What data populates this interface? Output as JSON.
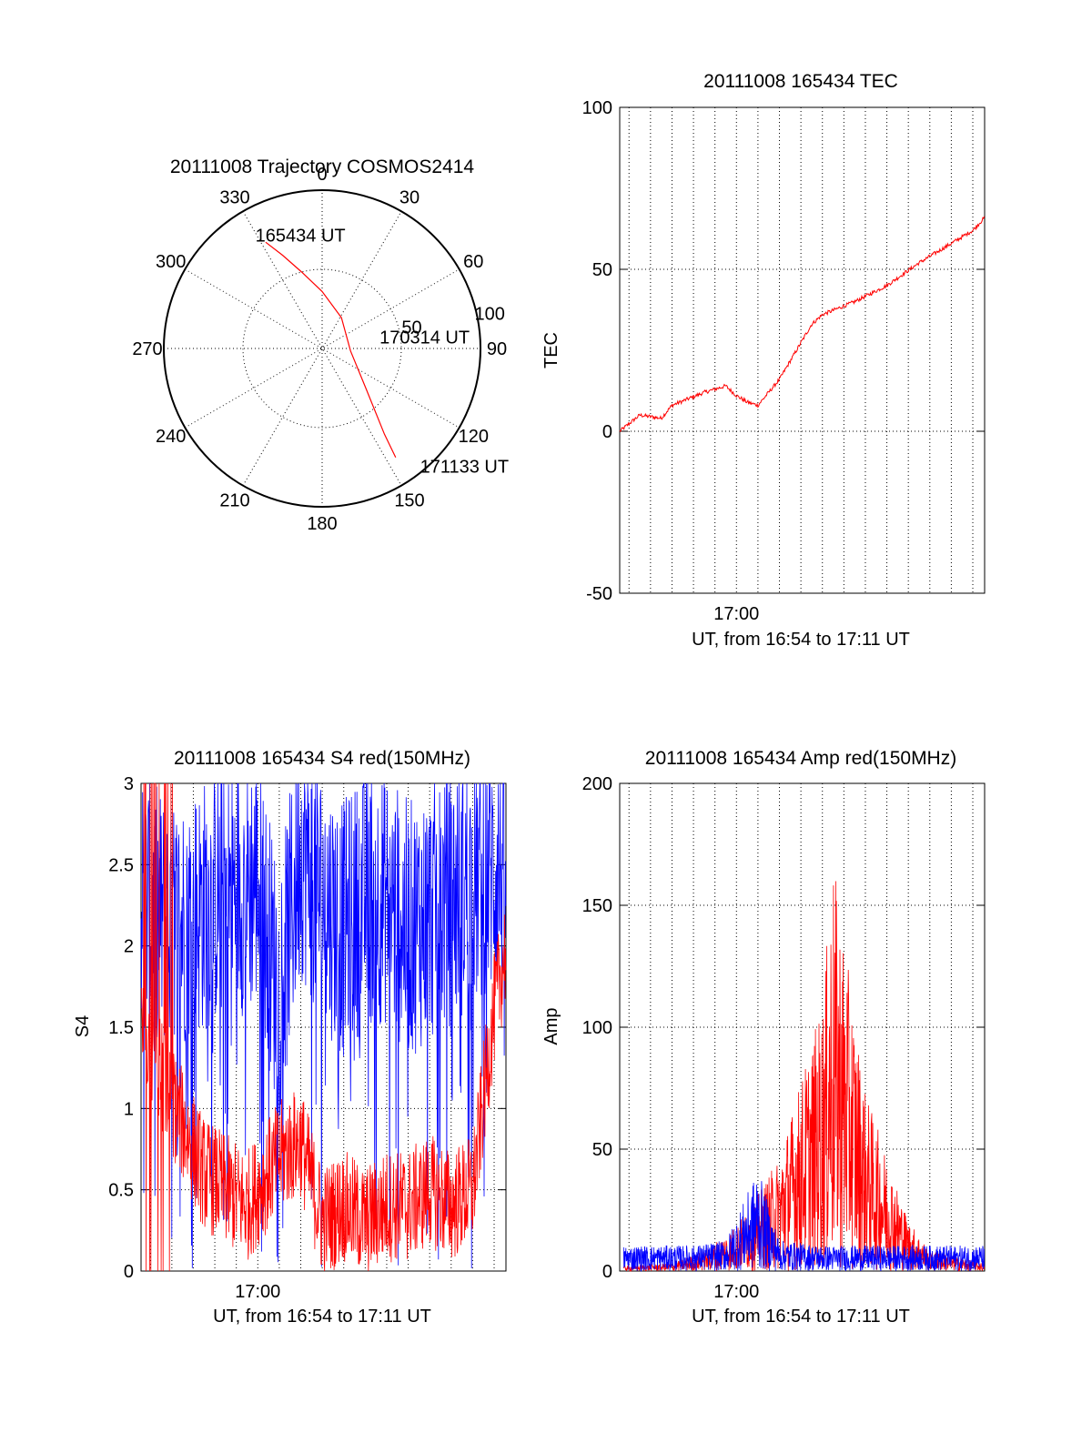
{
  "chart_data": [
    {
      "id": "trajectory",
      "type": "polar",
      "title": "20111008 Trajectory COSMOS2414",
      "angle_labels": [
        "0",
        "30",
        "60",
        "90",
        "120",
        "150",
        "180",
        "210",
        "240",
        "270",
        "300",
        "330"
      ],
      "radial_labels": [
        "50",
        "100"
      ],
      "rlim": [
        0,
        100
      ],
      "grid": true,
      "line_color": "#ff0000",
      "track": [
        {
          "az": 332,
          "r": 76
        },
        {
          "az": 337,
          "r": 64
        },
        {
          "az": 345,
          "r": 50
        },
        {
          "az": 360,
          "r": 36
        },
        {
          "az": 32,
          "r": 23
        },
        {
          "az": 95,
          "r": 18
        },
        {
          "az": 132,
          "r": 37
        },
        {
          "az": 144,
          "r": 67
        },
        {
          "az": 146,
          "r": 83
        }
      ],
      "annotations": [
        {
          "text": "165434 UT",
          "az": 330,
          "r": 82
        },
        {
          "text": "170314 UT",
          "az": 80,
          "r": 38
        },
        {
          "text": "171133 UT",
          "az": 140,
          "r": 98
        }
      ]
    },
    {
      "id": "tec",
      "type": "line",
      "title": "20111008 165434 TEC",
      "ylabel": "TEC",
      "xlabel": "UT, from 16:54 to 17:11 UT",
      "x_tick_labels": [
        "17:00"
      ],
      "ylim": [
        -50,
        100
      ],
      "y_ticks": [
        -50,
        0,
        50,
        100
      ],
      "xlim": [
        "16:54:34",
        "17:11:33"
      ],
      "grid": true,
      "series": [
        {
          "color": "#ff0000",
          "x": [
            "16:54:34",
            "16:55:30",
            "16:56:30",
            "16:57:00",
            "16:58:30",
            "16:59:30",
            "17:00:00",
            "17:00:30",
            "17:01:00",
            "17:02:00",
            "17:03:30",
            "17:04:00",
            "17:05:30",
            "17:07:00",
            "17:08:30",
            "17:10:00",
            "17:11:00",
            "17:11:33"
          ],
          "values": [
            0,
            5,
            4,
            8,
            12,
            14,
            11,
            9,
            8,
            16,
            33,
            36,
            40,
            45,
            52,
            58,
            62,
            66
          ]
        }
      ]
    },
    {
      "id": "s4",
      "type": "line",
      "title": "20111008 165434 S4 red(150MHz)",
      "ylabel": "S4",
      "xlabel": "UT, from 16:54 to 17:11 UT",
      "x_tick_labels": [
        "17:00"
      ],
      "ylim": [
        0,
        3
      ],
      "y_ticks": [
        "0",
        "0.5",
        "1",
        "1.5",
        "2",
        "2.5",
        "3"
      ],
      "xlim": [
        "16:54:34",
        "17:11:33"
      ],
      "grid": true,
      "series": [
        {
          "color": "#0000ff",
          "x": [
            "16:54:34",
            "16:56:00",
            "16:58:00",
            "17:00:00",
            "17:01:00",
            "17:02:00",
            "17:03:00",
            "17:04:00",
            "17:05:00",
            "17:06:00",
            "17:07:00",
            "17:08:00",
            "17:09:00",
            "17:10:00",
            "17:11:33"
          ],
          "values": [
            2.3,
            2.1,
            2.3,
            2.4,
            1.7,
            2.6,
            2.3,
            2.1,
            2.3,
            2.3,
            2.1,
            2.2,
            2.3,
            2.4,
            2.5
          ]
        },
        {
          "color": "#ff0000",
          "x": [
            "16:54:34",
            "16:55:30",
            "16:56:30",
            "16:57:30",
            "16:58:30",
            "16:59:30",
            "17:00:00",
            "17:01:00",
            "17:02:00",
            "17:03:00",
            "17:04:00",
            "17:05:00",
            "17:06:00",
            "17:07:00",
            "17:08:00",
            "17:09:00",
            "17:10:00",
            "17:11:00",
            "17:11:33"
          ],
          "values": [
            1.5,
            1.2,
            0.9,
            0.6,
            0.5,
            0.4,
            0.5,
            0.7,
            0.8,
            0.3,
            0.4,
            0.3,
            0.4,
            0.4,
            0.5,
            0.4,
            0.5,
            1.6,
            2.0
          ]
        }
      ]
    },
    {
      "id": "amp",
      "type": "line",
      "title": "20111008 165434 Amp red(150MHz)",
      "ylabel": "Amp",
      "xlabel": "UT, from 16:54 to 17:11 UT",
      "x_tick_labels": [
        "17:00"
      ],
      "ylim": [
        0,
        200
      ],
      "y_ticks": [
        0,
        50,
        100,
        150,
        200
      ],
      "xlim": [
        "16:54:34",
        "17:11:33"
      ],
      "grid": true,
      "series": [
        {
          "color": "#ff0000",
          "x": [
            "16:54:34",
            "16:57:00",
            "16:58:30",
            "17:00:00",
            "17:01:00",
            "17:02:00",
            "17:03:00",
            "17:04:00",
            "17:04:30",
            "17:05:00",
            "17:06:00",
            "17:07:00",
            "17:08:00",
            "17:09:00",
            "17:11:33"
          ],
          "values": [
            2,
            3,
            8,
            18,
            30,
            45,
            75,
            105,
            160,
            130,
            70,
            45,
            20,
            8,
            3
          ]
        },
        {
          "color": "#0000ff",
          "x": [
            "16:54:34",
            "16:56:00",
            "16:58:00",
            "16:59:30",
            "17:00:30",
            "17:01:00",
            "17:02:00",
            "17:04:00",
            "17:06:00",
            "17:08:00",
            "17:10:00",
            "17:11:33"
          ],
          "values": [
            10,
            10,
            10,
            12,
            30,
            40,
            12,
            10,
            10,
            10,
            10,
            10
          ]
        }
      ]
    }
  ]
}
